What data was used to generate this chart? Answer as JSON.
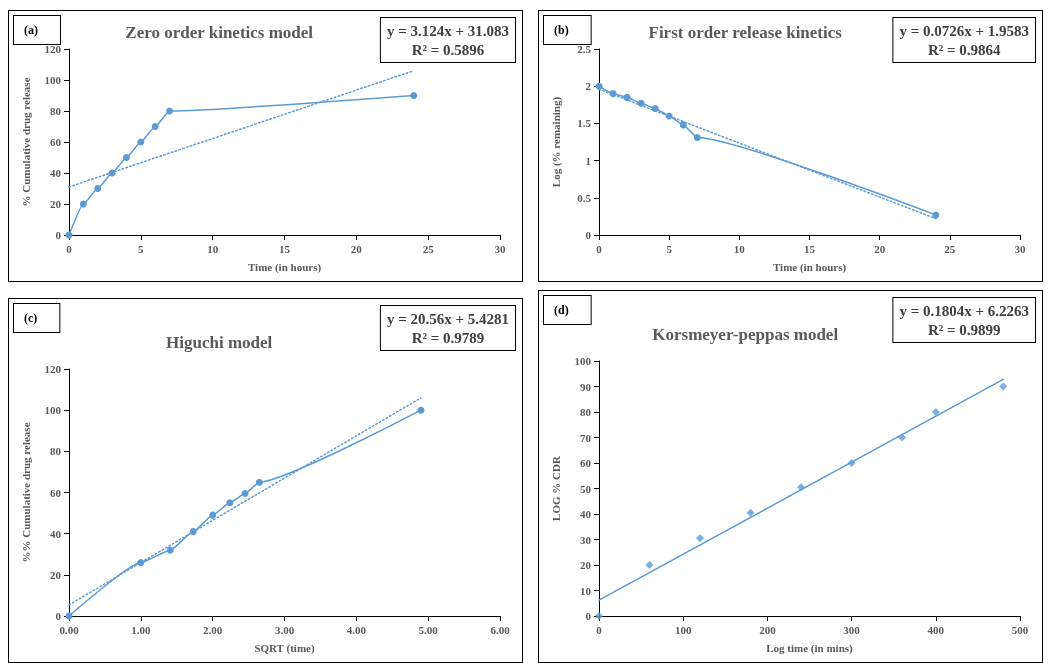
{
  "chart_data": [
    {
      "type": "line",
      "title": "Zero order kinetics model",
      "xlabel": "Time (in hours)",
      "ylabel": "% Cumulative drug release",
      "annotations": [
        "(a)",
        "y = 3.124x + 31.083",
        "R² = 0.5896"
      ],
      "xlim": [
        0,
        30
      ],
      "xticks": [
        0,
        5,
        10,
        15,
        20,
        25,
        30
      ],
      "ylim": [
        0,
        120
      ],
      "yticks": [
        0,
        20,
        40,
        60,
        80,
        100,
        120
      ],
      "grid": false,
      "series": [
        {
          "color": "#5b9bd5",
          "marker": "circle",
          "line_style": "solid",
          "x": [
            0,
            1,
            2,
            3,
            4,
            5,
            6,
            7,
            24
          ],
          "values": [
            0,
            20,
            30,
            40,
            50,
            60,
            70,
            80,
            90
          ]
        },
        {
          "color": "#5b9bd5",
          "marker": "none",
          "line_style": "dotted",
          "x": [
            0,
            24
          ],
          "values": [
            31,
            106
          ]
        }
      ]
    },
    {
      "type": "line",
      "title": "First order release kinetics",
      "xlabel": "Time (in hours)",
      "ylabel": "Log (% remaining)",
      "annotations": [
        "(b)",
        "y = 0.0726x + 1.9583",
        "R² = 0.9864"
      ],
      "xlim": [
        0,
        30
      ],
      "xticks": [
        0,
        5,
        10,
        15,
        20,
        25,
        30
      ],
      "ylim": [
        0,
        2.5
      ],
      "yticks": [
        0,
        0.5,
        1,
        1.5,
        2,
        2.5
      ],
      "grid": false,
      "series": [
        {
          "color": "#5b9bd5",
          "marker": "circle",
          "line_style": "solid",
          "x": [
            0,
            1,
            2,
            3,
            4,
            5,
            6,
            7,
            24
          ],
          "values": [
            2,
            1.9,
            1.85,
            1.77,
            1.7,
            1.6,
            1.48,
            1.31,
            0.27
          ]
        },
        {
          "color": "#5b9bd5",
          "marker": "none",
          "line_style": "dotted",
          "x": [
            0,
            24
          ],
          "values": [
            1.96,
            0.22
          ]
        }
      ]
    },
    {
      "type": "line",
      "title": "Higuchi model",
      "xlabel": "SQRT (time)",
      "ylabel": "%% Cumulative drug release",
      "annotations": [
        "(c)",
        "y = 20.56x + 5.4281",
        "R² = 0.9789"
      ],
      "xlim": [
        0,
        6
      ],
      "xticks": [
        {
          "value": 0,
          "label": "0.00"
        },
        {
          "value": 1,
          "label": "1.00"
        },
        {
          "value": 2,
          "label": "2.00"
        },
        {
          "value": 3,
          "label": "3.00"
        },
        {
          "value": 4,
          "label": "4.00"
        },
        {
          "value": 5,
          "label": "5.00"
        },
        {
          "value": 6,
          "label": "6.00"
        }
      ],
      "ylim": [
        0,
        120
      ],
      "yticks": [
        0,
        20,
        40,
        60,
        80,
        100,
        120
      ],
      "grid": false,
      "series": [
        {
          "color": "#5b9bd5",
          "marker": "circle",
          "line_style": "solid",
          "x": [
            0,
            1,
            1.41,
            1.73,
            2,
            2.24,
            2.45,
            2.65,
            4.9
          ],
          "values": [
            0,
            26,
            32,
            41,
            49,
            55,
            59.5,
            65,
            100
          ]
        },
        {
          "color": "#5b9bd5",
          "marker": "none",
          "line_style": "dotted",
          "x": [
            0,
            4.9
          ],
          "values": [
            5.4,
            106
          ]
        }
      ]
    },
    {
      "type": "scatter",
      "title": "Korsmeyer-peppas model",
      "xlabel": "Log time (in mins)",
      "ylabel": "LOG % CDR",
      "annotations": [
        "(d)",
        "y = 0.1804x + 6.2263",
        "R² = 0.9899"
      ],
      "xlim": [
        0,
        500
      ],
      "xticks": [
        0,
        100,
        200,
        300,
        400,
        500
      ],
      "ylim": [
        0,
        100
      ],
      "yticks": [
        0,
        10,
        20,
        30,
        40,
        50,
        60,
        70,
        80,
        90,
        100
      ],
      "grid": false,
      "series": [
        {
          "color": "#5b9bd5",
          "marker": "diamond",
          "x": [
            0,
            60,
            120,
            180,
            240,
            300,
            360,
            400,
            480
          ],
          "values": [
            0,
            20,
            30.5,
            40.5,
            50.5,
            60,
            70,
            80,
            90
          ]
        },
        {
          "type": "line",
          "color": "#5b9bd5",
          "marker": "none",
          "line_style": "solid",
          "x": [
            0,
            480
          ],
          "values": [
            6.2,
            92.8
          ]
        }
      ]
    }
  ]
}
